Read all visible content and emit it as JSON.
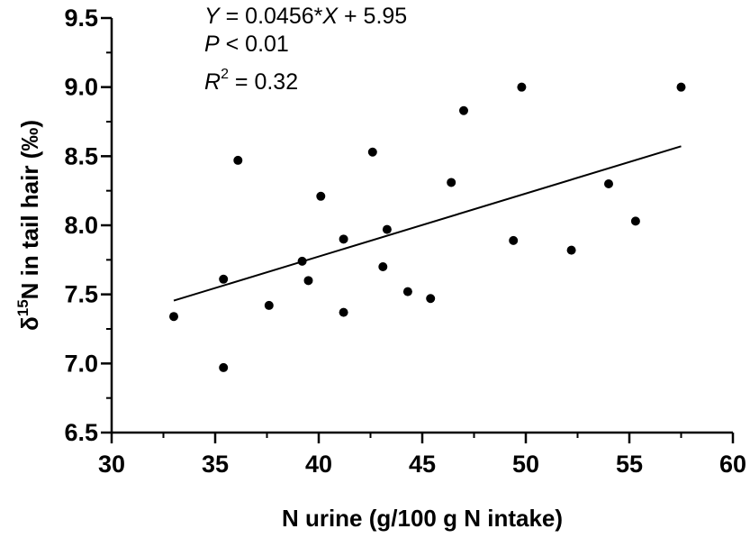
{
  "chart_data": {
    "type": "scatter",
    "xlabel": "N urine (g/100 g N intake)",
    "ylabel_parts": {
      "delta": "δ",
      "sup": "15",
      "rest": "N in tail hair (‰)"
    },
    "xlim": [
      30,
      60
    ],
    "ylim": [
      6.5,
      9.5
    ],
    "xticks": [
      30,
      35,
      40,
      45,
      50,
      55,
      60
    ],
    "yticks": [
      6.5,
      7.0,
      7.5,
      8.0,
      8.5,
      9.0,
      9.5
    ],
    "xtick_labels": [
      "30",
      "35",
      "40",
      "45",
      "50",
      "55",
      "60"
    ],
    "ytick_labels": [
      "6.5",
      "7.0",
      "7.5",
      "8.0",
      "8.5",
      "9.0",
      "9.5"
    ],
    "grid": false,
    "points": [
      {
        "x": 33.0,
        "y": 7.34
      },
      {
        "x": 35.4,
        "y": 7.61
      },
      {
        "x": 35.4,
        "y": 6.97
      },
      {
        "x": 36.1,
        "y": 8.47
      },
      {
        "x": 37.6,
        "y": 7.42
      },
      {
        "x": 39.2,
        "y": 7.74
      },
      {
        "x": 39.5,
        "y": 7.6
      },
      {
        "x": 40.1,
        "y": 8.21
      },
      {
        "x": 41.2,
        "y": 7.9
      },
      {
        "x": 41.2,
        "y": 7.37
      },
      {
        "x": 42.6,
        "y": 8.53
      },
      {
        "x": 43.1,
        "y": 7.7
      },
      {
        "x": 43.3,
        "y": 7.97
      },
      {
        "x": 44.3,
        "y": 7.52
      },
      {
        "x": 45.4,
        "y": 7.47
      },
      {
        "x": 46.4,
        "y": 8.31
      },
      {
        "x": 47.0,
        "y": 8.83
      },
      {
        "x": 49.4,
        "y": 7.89
      },
      {
        "x": 49.8,
        "y": 9.0
      },
      {
        "x": 52.2,
        "y": 7.82
      },
      {
        "x": 54.0,
        "y": 8.3
      },
      {
        "x": 55.3,
        "y": 8.03
      },
      {
        "x": 57.5,
        "y": 9.0
      }
    ],
    "fit_line": {
      "slope": 0.0456,
      "intercept": 5.95,
      "x_range": [
        33.0,
        57.5
      ]
    },
    "annotations": {
      "equation": {
        "y_var": "Y",
        "eq_mid": " = 0.0456*",
        "x_var": "X",
        "eq_end": " + 5.95"
      },
      "p_value": {
        "var": "P",
        "rest": " < 0.01"
      },
      "r_squared": {
        "var": "R",
        "sup": "2",
        "rest": " = 0.32"
      }
    }
  }
}
